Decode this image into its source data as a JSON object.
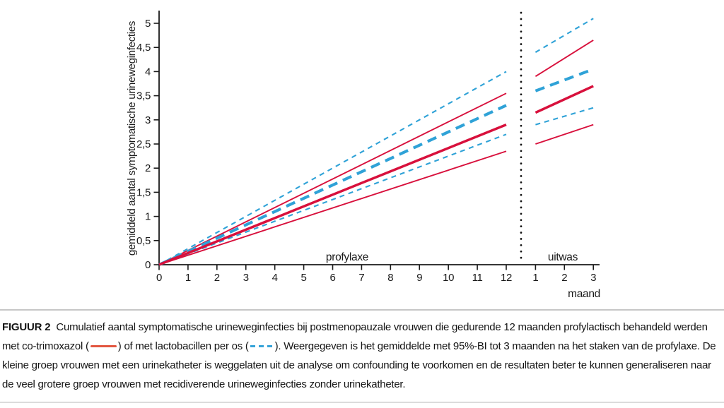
{
  "chart_data": {
    "type": "line",
    "title": "",
    "ylabel": "gemiddeld aantal symptomatische urineweginfecties",
    "xlabel": "maand",
    "ylim": [
      0,
      5.25
    ],
    "grid": false,
    "y_axis": {
      "tick_values": [
        0,
        0.5,
        1,
        1.5,
        2,
        2.5,
        3,
        3.5,
        4,
        4.5,
        5
      ],
      "tick_labels": [
        "0",
        "0,5",
        "1",
        "1,5",
        "2",
        "2,5",
        "3",
        "3,5",
        "4",
        "4,5",
        "5"
      ]
    },
    "x_axis": {
      "sections": [
        {
          "id": "profylaxe",
          "label": "profylaxe",
          "tick_values": [
            0,
            1,
            2,
            3,
            4,
            5,
            6,
            7,
            8,
            9,
            10,
            11,
            12
          ]
        },
        {
          "id": "uitwas",
          "label": "uitwas",
          "tick_values": [
            1,
            2,
            3
          ]
        }
      ],
      "divider": "dotted-vertical-line-between-sections"
    },
    "series": [
      {
        "name": "co-trimoxazol 95%-BI bovengrens",
        "group": "co-trimoxazol",
        "color": "red",
        "line": "solid-thin",
        "segments": [
          {
            "section": "profylaxe",
            "x": [
              0,
              12
            ],
            "y": [
              0,
              3.55
            ]
          },
          {
            "section": "uitwas",
            "x": [
              1,
              3
            ],
            "y": [
              3.9,
              4.65
            ]
          }
        ]
      },
      {
        "name": "co-trimoxazol 95%-BI ondergrens",
        "group": "co-trimoxazol",
        "color": "red",
        "line": "solid-thin",
        "segments": [
          {
            "section": "profylaxe",
            "x": [
              0,
              12
            ],
            "y": [
              0,
              2.35
            ]
          },
          {
            "section": "uitwas",
            "x": [
              1,
              3
            ],
            "y": [
              2.5,
              2.9
            ]
          }
        ]
      },
      {
        "name": "lactobacillen 95%-BI bovengrens",
        "group": "lactobacillen",
        "color": "blue",
        "line": "dashed-thin",
        "segments": [
          {
            "section": "profylaxe",
            "x": [
              0,
              12
            ],
            "y": [
              0,
              4.0
            ]
          },
          {
            "section": "uitwas",
            "x": [
              1,
              3
            ],
            "y": [
              4.4,
              5.1
            ]
          }
        ]
      },
      {
        "name": "lactobacillen 95%-BI ondergrens",
        "group": "lactobacillen",
        "color": "blue",
        "line": "dashed-thin",
        "segments": [
          {
            "section": "profylaxe",
            "x": [
              0,
              12
            ],
            "y": [
              0,
              2.7
            ]
          },
          {
            "section": "uitwas",
            "x": [
              1,
              3
            ],
            "y": [
              2.9,
              3.25
            ]
          }
        ]
      },
      {
        "name": "lactobacillen gemiddelde",
        "group": "lactobacillen",
        "color": "blue",
        "line": "dashed-thick",
        "segments": [
          {
            "section": "profylaxe",
            "x": [
              0,
              12
            ],
            "y": [
              0,
              3.3
            ]
          },
          {
            "section": "uitwas",
            "x": [
              1,
              3
            ],
            "y": [
              3.6,
              4.05
            ]
          }
        ]
      },
      {
        "name": "co-trimoxazol gemiddelde",
        "group": "co-trimoxazol",
        "color": "red",
        "line": "solid-thick",
        "segments": [
          {
            "section": "profylaxe",
            "x": [
              0,
              12
            ],
            "y": [
              0,
              2.9
            ]
          },
          {
            "section": "uitwas",
            "x": [
              1,
              3
            ],
            "y": [
              3.15,
              3.7
            ]
          }
        ]
      }
    ],
    "colors": {
      "red": "#d8103c",
      "blue": "#2fa2d7",
      "axis": "#1a1a1a",
      "divider": "#111111"
    },
    "legend_position": "in-caption"
  },
  "caption": {
    "label": "FIGUUR 2",
    "text_before_red_symbol": "Cumulatief aantal symptomatische urineweginfecties bij postmenopauzale vrouwen die gedurende 12 maanden profylactisch behandeld werden met co-trimoxazol (",
    "text_between_symbols": ") of met lactobacillen per os (",
    "text_after_blue_symbol": "). Weergegeven is het gemiddelde met 95%-BI tot 3 maanden na het staken van de profylaxe. De kleine groep vrouwen met een urinekatheter is weggelaten uit de analyse om confounding te voorkomen en de resultaten beter te kunnen generaliseren naar de veel grotere groep vrouwen met recidiverende urineweginfecties zonder urinekatheter."
  }
}
